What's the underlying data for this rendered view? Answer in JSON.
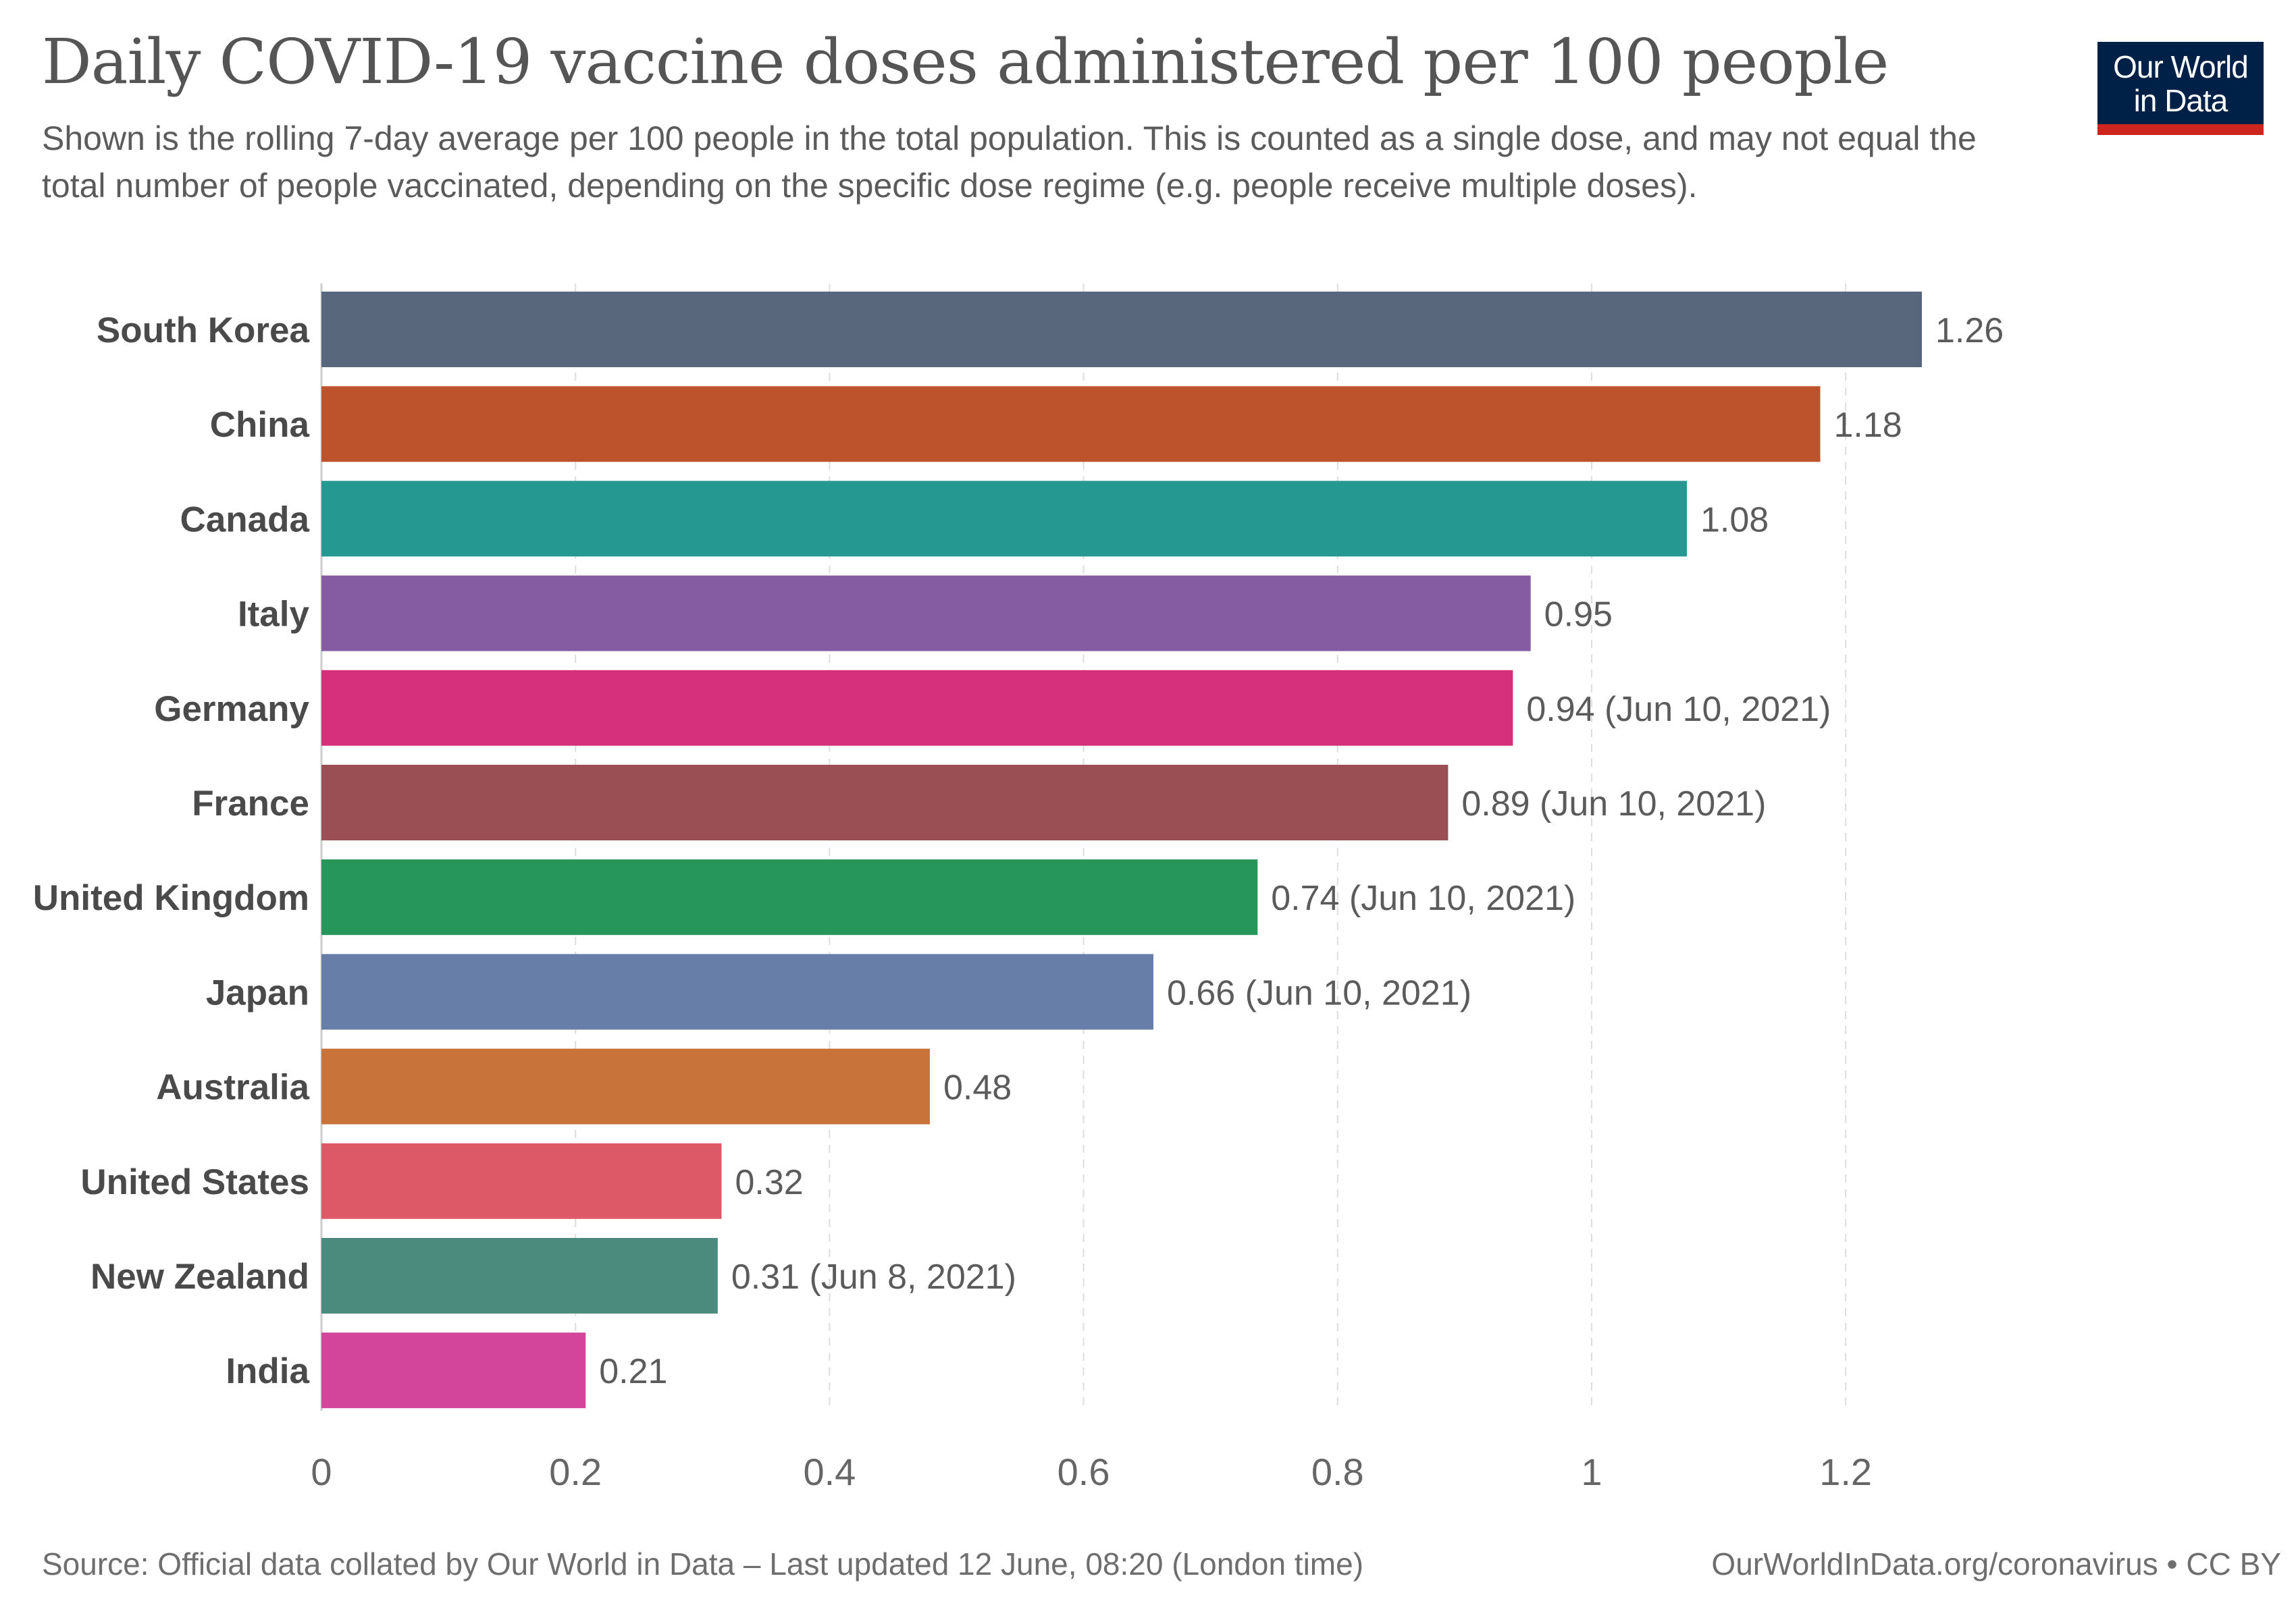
{
  "chart_data": {
    "type": "bar",
    "orientation": "horizontal",
    "title": "Daily COVID-19 vaccine doses administered per 100 people",
    "subtitle": "Shown is the rolling 7-day average per 100 people in the total population. This is counted as a single dose, and may not equal the total number of people vaccinated, depending on the specific dose regime (e.g. people receive multiple doses).",
    "xlim": [
      0,
      1.26
    ],
    "x_ticks": [
      "0",
      "0.2",
      "0.4",
      "0.6",
      "0.8",
      "1",
      "1.2"
    ],
    "x_tick_values": [
      0,
      0.2,
      0.4,
      0.6,
      0.8,
      1,
      1.2
    ],
    "grid": true,
    "bars": [
      {
        "label": "South Korea",
        "value": 1.26,
        "value_label": "1.26",
        "color": "#58677c"
      },
      {
        "label": "China",
        "value": 1.18,
        "value_label": "1.18",
        "color": "#bc532c"
      },
      {
        "label": "Canada",
        "value": 1.075,
        "value_label": "1.08",
        "color": "#259891"
      },
      {
        "label": "Italy",
        "value": 0.952,
        "value_label": "0.95",
        "color": "#855ca2"
      },
      {
        "label": "Germany",
        "value": 0.938,
        "value_label": "0.94 (Jun 10, 2021)",
        "color": "#d6307c"
      },
      {
        "label": "France",
        "value": 0.887,
        "value_label": "0.89 (Jun 10, 2021)",
        "color": "#994f54"
      },
      {
        "label": "United Kingdom",
        "value": 0.737,
        "value_label": "0.74 (Jun 10, 2021)",
        "color": "#26965a"
      },
      {
        "label": "Japan",
        "value": 0.655,
        "value_label": "0.66 (Jun 10, 2021)",
        "color": "#677ea9"
      },
      {
        "label": "Australia",
        "value": 0.479,
        "value_label": "0.48",
        "color": "#c8733a"
      },
      {
        "label": "United States",
        "value": 0.315,
        "value_label": "0.32",
        "color": "#dd5968"
      },
      {
        "label": "New Zealand",
        "value": 0.312,
        "value_label": "0.31 (Jun 8, 2021)",
        "color": "#4a8b7e"
      },
      {
        "label": "India",
        "value": 0.208,
        "value_label": "0.21",
        "color": "#d3449b"
      }
    ]
  },
  "logo": {
    "line1": "Our World",
    "line2": "in Data"
  },
  "footer": {
    "source": "Source: Official data collated by Our World in Data – Last updated 12 June, 08:20 (London time)",
    "credit": "OurWorldInData.org/coronavirus • CC BY"
  },
  "colors": {
    "logo_bg": "#002147",
    "logo_accent": "#ce261e",
    "grid": "#dddddd",
    "label_text": "#4a4a4a",
    "value_text": "#5b5b5b"
  }
}
